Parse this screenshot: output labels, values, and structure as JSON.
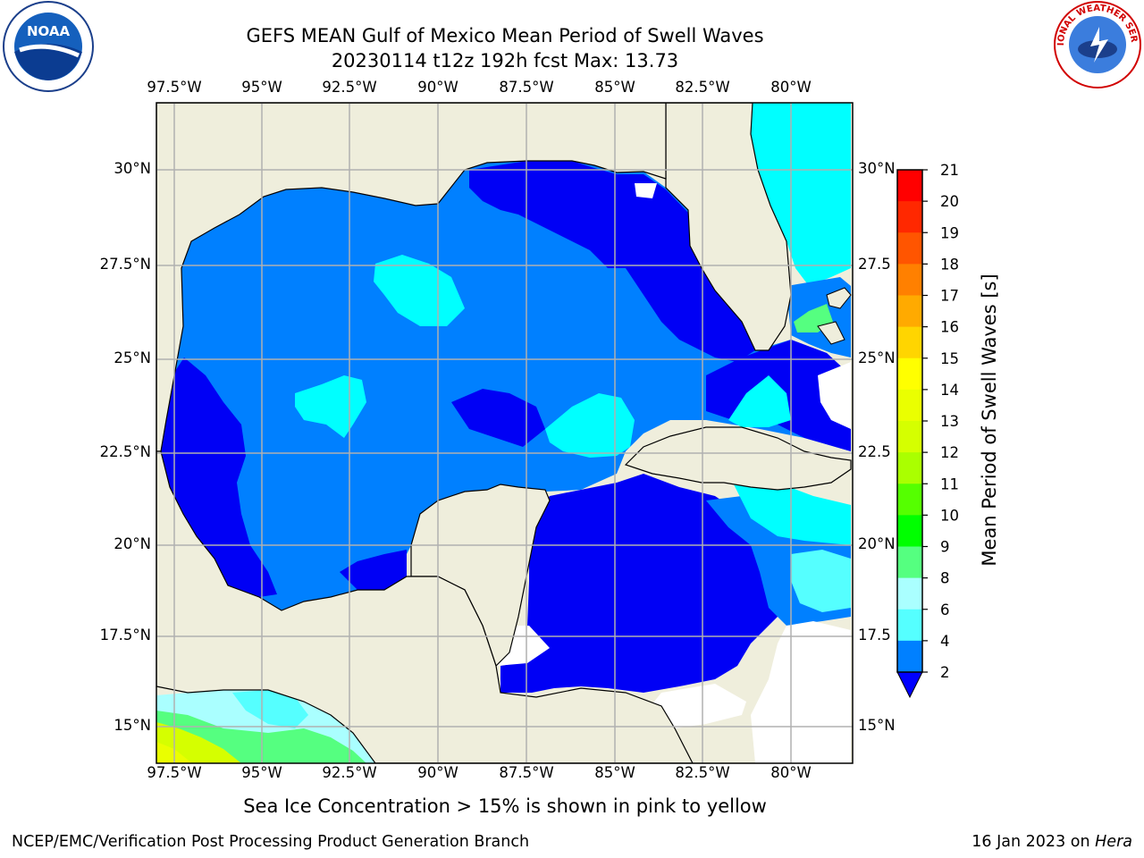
{
  "title": {
    "line1": "GEFS MEAN Gulf of Mexico Mean Period of Swell Waves",
    "line2": "20230114 t12z 192h fcst   Max: 13.73"
  },
  "logos": {
    "left": {
      "icon": "noaa-logo-icon",
      "text": "NOAA"
    },
    "right": {
      "icon": "national-weather-service-logo-icon",
      "text": "NATIONAL WEATHER SERVICE"
    }
  },
  "map": {
    "lon_labels": [
      "97.5°W",
      "95°W",
      "92.5°W",
      "90°W",
      "87.5°W",
      "85°W",
      "82.5°W",
      "80°W"
    ],
    "lat_labels_left": [
      "30°N",
      "27.5°N",
      "25°N",
      "22.5°N",
      "20°N",
      "17.5°N",
      "15°N"
    ],
    "lat_labels_right": [
      "30°N",
      "27.5",
      "25°N",
      "22.5",
      "20°N",
      "17.5",
      "15°N"
    ],
    "colors": {
      "land": "#efeedc",
      "ocean_deep": "#0000f5",
      "ocean_mid": "#0080ff",
      "ocean_light": "#00ffff",
      "grid": "#b0b0b0"
    }
  },
  "colorbar": {
    "label": "Mean Period of Swell Waves [s]",
    "ticks": [
      "21",
      "20",
      "19",
      "18",
      "17",
      "16",
      "15",
      "14",
      "13",
      "12",
      "11",
      "10",
      "9",
      "8",
      "6",
      "4",
      "2"
    ],
    "colors": [
      "#ff0000",
      "#ff2800",
      "#ff5500",
      "#ff8000",
      "#ffaa00",
      "#ffd500",
      "#ffff00",
      "#eaff00",
      "#d5ff00",
      "#aaff00",
      "#55ff00",
      "#00ff00",
      "#55ff80",
      "#aaffff",
      "#55ffff",
      "#00ffff",
      "#0080ff"
    ],
    "extend_color": "#0000ff"
  },
  "caption": "Sea Ice Concentration > 15% is shown in pink to yellow",
  "footer": {
    "left": "NCEP/EMC/Verification Post Processing Product Generation Branch",
    "right_date": "16 Jan 2023 on ",
    "right_machine": "Hera"
  }
}
